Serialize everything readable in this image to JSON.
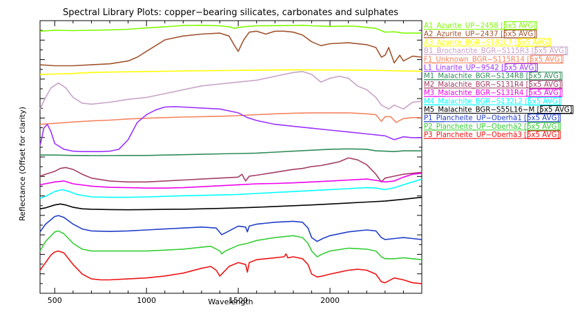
{
  "chart_data": {
    "type": "line",
    "title": "Spectral Library Plots: copper−bearing silicates, carbonates and sulphates",
    "xlabel": "Wavelength",
    "ylabel": "Reflectance (Offset for clarity)",
    "xlim": [
      420,
      2500
    ],
    "x_ticks": [
      "500",
      "1000",
      "1500",
      "2000"
    ],
    "y_ticks_labeled": false,
    "grid": false,
    "legend_position": "right",
    "series": [
      {
        "name": "A1_Azurite_UP−2458 [5x5 AVG]",
        "color": "#7cfc00",
        "x": [
          420,
          500,
          600,
          700,
          800,
          900,
          1000,
          1100,
          1200,
          1300,
          1400,
          1450,
          1480,
          1500,
          1550,
          1600,
          1700,
          1800,
          1850,
          1900,
          1950,
          2000,
          2100,
          2150,
          2200,
          2250,
          2300,
          2350,
          2400,
          2500
        ],
        "y": [
          0.945,
          0.95,
          0.948,
          0.95,
          0.952,
          0.955,
          0.962,
          0.968,
          0.975,
          0.976,
          0.973,
          0.968,
          0.96,
          0.965,
          0.97,
          0.973,
          0.974,
          0.975,
          0.976,
          0.973,
          0.972,
          0.97,
          0.972,
          0.97,
          0.965,
          0.96,
          0.94,
          0.942,
          0.935,
          0.935
        ]
      },
      {
        "name": "A2_Azurite_UP−2437 [5x5 AVG]",
        "color": "#a0522d",
        "x": [
          420,
          500,
          600,
          700,
          800,
          900,
          950,
          1000,
          1050,
          1100,
          1200,
          1300,
          1400,
          1450,
          1480,
          1500,
          1530,
          1560,
          1600,
          1650,
          1700,
          1750,
          1800,
          1850,
          1900,
          1950,
          2000,
          2100,
          2200,
          2250,
          2280,
          2300,
          2320,
          2350,
          2380,
          2400,
          2450,
          2500
        ],
        "y": [
          0.77,
          0.765,
          0.765,
          0.77,
          0.775,
          0.79,
          0.81,
          0.84,
          0.87,
          0.9,
          0.92,
          0.93,
          0.935,
          0.92,
          0.87,
          0.84,
          0.9,
          0.94,
          0.945,
          0.93,
          0.945,
          0.945,
          0.94,
          0.925,
          0.89,
          0.87,
          0.88,
          0.885,
          0.875,
          0.86,
          0.81,
          0.82,
          0.86,
          0.78,
          0.82,
          0.79,
          0.815,
          0.81
        ]
      },
      {
        "name": "A3_Azurite_BGR−S181L7 [5x5 AVG]",
        "color": "#ffff00",
        "x": [
          420,
          500,
          600,
          700,
          800,
          1000,
          1200,
          1400,
          1600,
          1800,
          2000,
          2200,
          2300,
          2400,
          2500
        ],
        "y": [
          0.72,
          0.722,
          0.725,
          0.73,
          0.732,
          0.735,
          0.738,
          0.74,
          0.742,
          0.744,
          0.743,
          0.742,
          0.74,
          0.738,
          0.736
        ]
      },
      {
        "name": "B1_Brochantite_BGR−S115R3 [5x5 AVG]",
        "color": "#c8a2c8",
        "x": [
          420,
          450,
          480,
          520,
          560,
          600,
          650,
          700,
          800,
          900,
          1000,
          1100,
          1200,
          1300,
          1400,
          1500,
          1600,
          1700,
          1800,
          1850,
          1900,
          1950,
          2000,
          2050,
          2100,
          2150,
          2200,
          2250,
          2280,
          2320,
          2350,
          2400,
          2450,
          2500
        ],
        "y": [
          0.54,
          0.6,
          0.65,
          0.675,
          0.65,
          0.6,
          0.57,
          0.565,
          0.575,
          0.59,
          0.6,
          0.62,
          0.64,
          0.66,
          0.67,
          0.68,
          0.69,
          0.71,
          0.73,
          0.735,
          0.72,
          0.68,
          0.7,
          0.71,
          0.7,
          0.66,
          0.64,
          0.6,
          0.56,
          0.54,
          0.56,
          0.54,
          0.575,
          0.58
        ]
      },
      {
        "name": "F1_Unknown_BGR−S115R14 [5x5 AVG]",
        "color": "#f4845f",
        "x": [
          420,
          500,
          600,
          700,
          800,
          900,
          1000,
          1100,
          1200,
          1300,
          1400,
          1500,
          1600,
          1700,
          1800,
          1900,
          2000,
          2100,
          2200,
          2250,
          2280,
          2300,
          2330,
          2360,
          2400,
          2450,
          2500
        ],
        "y": [
          0.46,
          0.465,
          0.472,
          0.478,
          0.482,
          0.488,
          0.492,
          0.495,
          0.498,
          0.5,
          0.502,
          0.505,
          0.51,
          0.515,
          0.518,
          0.52,
          0.52,
          0.52,
          0.515,
          0.51,
          0.475,
          0.5,
          0.5,
          0.47,
          0.49,
          0.495,
          0.495
        ]
      },
      {
        "name": "L1_Linarite_UP−9542 [5x5 AVG]",
        "color": "#9b30ff",
        "x": [
          420,
          430,
          440,
          460,
          480,
          500,
          550,
          600,
          650,
          700,
          750,
          800,
          850,
          900,
          950,
          1000,
          1050,
          1100,
          1150,
          1200,
          1300,
          1400,
          1500,
          1550,
          1600,
          1700,
          1800,
          1900,
          2000,
          2100,
          2200,
          2300,
          2350,
          2400,
          2450,
          2500
        ],
        "y": [
          0.35,
          0.39,
          0.44,
          0.46,
          0.42,
          0.36,
          0.33,
          0.32,
          0.318,
          0.318,
          0.318,
          0.32,
          0.33,
          0.38,
          0.47,
          0.51,
          0.535,
          0.55,
          0.552,
          0.55,
          0.545,
          0.54,
          0.52,
          0.495,
          0.48,
          0.46,
          0.45,
          0.44,
          0.43,
          0.42,
          0.41,
          0.4,
          0.38,
          0.395,
          0.39,
          0.39
        ]
      },
      {
        "name": "M1_Malachite_BGR−S134R8 [5x5 AVG]",
        "color": "#2e8b57",
        "x": [
          420,
          500,
          600,
          700,
          800,
          900,
          1000,
          1100,
          1200,
          1300,
          1400,
          1500,
          1600,
          1700,
          1800,
          1900,
          2000,
          2100,
          2200,
          2250,
          2300,
          2350,
          2400,
          2500
        ],
        "y": [
          0.3,
          0.3,
          0.298,
          0.297,
          0.297,
          0.298,
          0.298,
          0.3,
          0.302,
          0.304,
          0.306,
          0.308,
          0.31,
          0.315,
          0.32,
          0.325,
          0.33,
          0.332,
          0.33,
          0.322,
          0.32,
          0.318,
          0.322,
          0.322
        ]
      },
      {
        "name": "M2_Malachite_BGR−S131R4 [5x5 AVG]",
        "color": "#a23b63",
        "x": [
          420,
          450,
          500,
          530,
          560,
          600,
          650,
          700,
          800,
          900,
          1000,
          1100,
          1200,
          1300,
          1400,
          1500,
          1520,
          1540,
          1560,
          1600,
          1700,
          1800,
          1850,
          1900,
          1950,
          2000,
          2050,
          2100,
          2150,
          2200,
          2250,
          2280,
          2300,
          2350,
          2400,
          2450,
          2500
        ],
        "y": [
          0.19,
          0.2,
          0.215,
          0.23,
          0.235,
          0.225,
          0.2,
          0.18,
          0.165,
          0.16,
          0.16,
          0.165,
          0.17,
          0.175,
          0.18,
          0.185,
          0.2,
          0.165,
          0.19,
          0.195,
          0.21,
          0.225,
          0.23,
          0.24,
          0.245,
          0.255,
          0.265,
          0.285,
          0.275,
          0.25,
          0.2,
          0.16,
          0.18,
          0.19,
          0.2,
          0.205,
          0.21
        ]
      },
      {
        "name": "M3_Malachite_BGR−S131R4 [5x5 AVG]",
        "color": "#ee00ee",
        "x": [
          420,
          500,
          550,
          600,
          700,
          800,
          900,
          1000,
          1100,
          1200,
          1300,
          1400,
          1500,
          1600,
          1700,
          1800,
          1900,
          2000,
          2100,
          2200,
          2250,
          2300,
          2350,
          2400,
          2450,
          2500
        ],
        "y": [
          0.145,
          0.16,
          0.165,
          0.15,
          0.138,
          0.132,
          0.13,
          0.128,
          0.128,
          0.13,
          0.135,
          0.14,
          0.145,
          0.15,
          0.152,
          0.155,
          0.16,
          0.165,
          0.17,
          0.175,
          0.168,
          0.16,
          0.165,
          0.185,
          0.2,
          0.205
        ]
      },
      {
        "name": "M4_Malachite_BGR−S132L2 [5x5 AVG]",
        "color": "#00ffff",
        "x": [
          420,
          450,
          500,
          540,
          580,
          620,
          700,
          800,
          900,
          1000,
          1100,
          1200,
          1300,
          1400,
          1500,
          1600,
          1700,
          1800,
          1900,
          2000,
          2100,
          2200,
          2250,
          2300,
          2350,
          2400,
          2450,
          2500
        ],
        "y": [
          0.075,
          0.085,
          0.11,
          0.12,
          0.11,
          0.095,
          0.082,
          0.08,
          0.08,
          0.082,
          0.085,
          0.088,
          0.09,
          0.092,
          0.095,
          0.1,
          0.105,
          0.11,
          0.115,
          0.12,
          0.125,
          0.13,
          0.128,
          0.12,
          0.13,
          0.145,
          0.16,
          0.175
        ]
      },
      {
        "name": "M5_Malachite_BGR−S55L16−M [5x5 AVG]",
        "color": "#000000",
        "x": [
          420,
          450,
          500,
          530,
          560,
          600,
          650,
          700,
          800,
          900,
          1000,
          1100,
          1200,
          1300,
          1400,
          1500,
          1600,
          1700,
          1800,
          1900,
          2000,
          2100,
          2200,
          2300,
          2400,
          2500
        ],
        "y": [
          0.02,
          0.025,
          0.04,
          0.045,
          0.04,
          0.028,
          0.02,
          0.018,
          0.016,
          0.015,
          0.016,
          0.017,
          0.018,
          0.02,
          0.022,
          0.025,
          0.028,
          0.032,
          0.036,
          0.04,
          0.045,
          0.05,
          0.055,
          0.06,
          0.07,
          0.08
        ]
      },
      {
        "name": "P1_Plancheite_UP−Oberhä1 [5x5 AVG]",
        "color": "#1f3cc8",
        "x": [
          420,
          450,
          500,
          520,
          550,
          600,
          650,
          700,
          800,
          900,
          1000,
          1100,
          1200,
          1300,
          1380,
          1410,
          1440,
          1500,
          1540,
          1550,
          1560,
          1600,
          1700,
          1800,
          1850,
          1880,
          1900,
          1930,
          1960,
          2000,
          2100,
          2200,
          2250,
          2280,
          2300,
          2350,
          2400,
          2450,
          2500
        ],
        "y": [
          -0.1,
          -0.06,
          -0.02,
          -0.015,
          -0.025,
          -0.06,
          -0.085,
          -0.095,
          -0.098,
          -0.095,
          -0.09,
          -0.085,
          -0.08,
          -0.075,
          -0.08,
          -0.115,
          -0.1,
          -0.07,
          -0.075,
          -0.1,
          -0.07,
          -0.06,
          -0.05,
          -0.045,
          -0.05,
          -0.08,
          -0.13,
          -0.15,
          -0.135,
          -0.12,
          -0.1,
          -0.09,
          -0.095,
          -0.13,
          -0.14,
          -0.135,
          -0.13,
          -0.135,
          -0.14
        ]
      },
      {
        "name": "P2_Plancheite_UP−Oberhä2 [5x5 AVG]",
        "color": "#32cd32",
        "x": [
          420,
          450,
          500,
          520,
          550,
          600,
          650,
          700,
          800,
          900,
          1000,
          1100,
          1200,
          1300,
          1350,
          1400,
          1410,
          1430,
          1500,
          1550,
          1600,
          1700,
          1800,
          1850,
          1880,
          1900,
          1930,
          1960,
          2000,
          2100,
          2200,
          2250,
          2280,
          2300,
          2350,
          2400,
          2450,
          2500
        ],
        "y": [
          -0.2,
          -0.15,
          -0.1,
          -0.095,
          -0.11,
          -0.16,
          -0.19,
          -0.2,
          -0.2,
          -0.2,
          -0.2,
          -0.195,
          -0.19,
          -0.18,
          -0.175,
          -0.2,
          -0.215,
          -0.2,
          -0.17,
          -0.16,
          -0.145,
          -0.13,
          -0.12,
          -0.13,
          -0.16,
          -0.2,
          -0.23,
          -0.215,
          -0.2,
          -0.185,
          -0.19,
          -0.2,
          -0.23,
          -0.24,
          -0.24,
          -0.235,
          -0.24,
          -0.245
        ]
      },
      {
        "name": "P3_Plancheite_UP−Oberhä3 [5x5 AVG]",
        "color": "#ee1111",
        "x": [
          420,
          450,
          480,
          500,
          520,
          550,
          600,
          650,
          700,
          750,
          800,
          900,
          1000,
          1100,
          1200,
          1300,
          1350,
          1380,
          1400,
          1420,
          1450,
          1500,
          1540,
          1550,
          1560,
          1600,
          1650,
          1700,
          1750,
          1760,
          1770,
          1800,
          1850,
          1880,
          1900,
          1930,
          1960,
          2000,
          2050,
          2100,
          2150,
          2200,
          2250,
          2280,
          2300,
          2350,
          2400,
          2450,
          2500
        ],
        "y": [
          -0.3,
          -0.26,
          -0.22,
          -0.205,
          -0.2,
          -0.21,
          -0.27,
          -0.32,
          -0.345,
          -0.35,
          -0.35,
          -0.345,
          -0.34,
          -0.33,
          -0.315,
          -0.29,
          -0.28,
          -0.3,
          -0.33,
          -0.31,
          -0.28,
          -0.26,
          -0.27,
          -0.31,
          -0.26,
          -0.245,
          -0.24,
          -0.235,
          -0.23,
          -0.215,
          -0.235,
          -0.23,
          -0.24,
          -0.27,
          -0.32,
          -0.335,
          -0.33,
          -0.32,
          -0.31,
          -0.3,
          -0.295,
          -0.3,
          -0.32,
          -0.36,
          -0.365,
          -0.34,
          -0.35,
          -0.365,
          -0.37
        ]
      }
    ]
  }
}
